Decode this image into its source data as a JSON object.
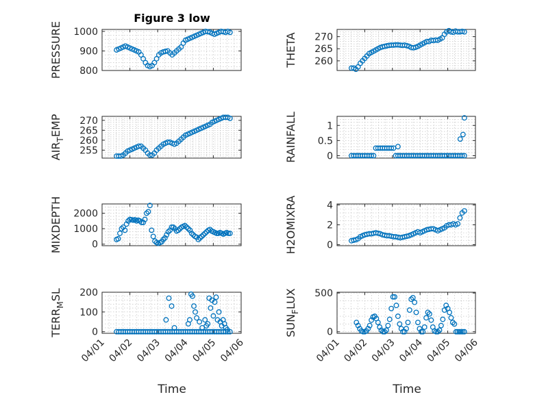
{
  "figure_title": "Figure 3 low",
  "xlabel": "Time",
  "x_ticks": [
    "04/01",
    "04/02",
    "04/03",
    "04/04",
    "04/05",
    "04/06"
  ],
  "marker_color": "#0072BD",
  "chart_data": [
    {
      "type": "scatter",
      "ylabel": "PRESSURE",
      "ylabel_sub": "",
      "xlim": [
        0,
        5
      ],
      "ylim": [
        800,
        1010
      ],
      "yticks": [
        800,
        900,
        1000
      ],
      "grid": true,
      "x": [
        0.52,
        0.6,
        0.68,
        0.76,
        0.84,
        0.92,
        1.0,
        1.08,
        1.16,
        1.24,
        1.32,
        1.4,
        1.48,
        1.56,
        1.64,
        1.72,
        1.8,
        1.88,
        1.96,
        2.04,
        2.12,
        2.2,
        2.28,
        2.36,
        2.44,
        2.52,
        2.6,
        2.68,
        2.76,
        2.84,
        2.92,
        3.0,
        3.08,
        3.16,
        3.24,
        3.32,
        3.4,
        3.48,
        3.56,
        3.64,
        3.72,
        3.8,
        3.88,
        3.96,
        4.04,
        4.12,
        4.2,
        4.28,
        4.36,
        4.44,
        4.52,
        4.6
      ],
      "y": [
        905,
        910,
        915,
        920,
        925,
        920,
        915,
        910,
        905,
        900,
        895,
        880,
        860,
        840,
        825,
        820,
        825,
        840,
        860,
        880,
        890,
        895,
        898,
        900,
        890,
        880,
        890,
        900,
        910,
        920,
        940,
        955,
        960,
        965,
        970,
        975,
        980,
        985,
        990,
        995,
        1000,
        998,
        996,
        990,
        985,
        990,
        995,
        1000,
        998,
        995,
        1000,
        995
      ]
    },
    {
      "type": "scatter",
      "ylabel": "THETA",
      "ylabel_sub": "",
      "xlim": [
        0,
        5
      ],
      "ylim": [
        256,
        273
      ],
      "yticks": [
        260,
        265,
        270
      ],
      "grid": true,
      "x": [
        0.52,
        0.6,
        0.68,
        0.76,
        0.84,
        0.92,
        1.0,
        1.08,
        1.16,
        1.24,
        1.32,
        1.4,
        1.48,
        1.56,
        1.64,
        1.72,
        1.8,
        1.88,
        1.96,
        2.04,
        2.12,
        2.2,
        2.28,
        2.36,
        2.44,
        2.52,
        2.6,
        2.68,
        2.76,
        2.84,
        2.92,
        3.0,
        3.08,
        3.16,
        3.24,
        3.32,
        3.4,
        3.48,
        3.56,
        3.64,
        3.72,
        3.8,
        3.88,
        3.96,
        4.04,
        4.12,
        4.2,
        4.28,
        4.36,
        4.44,
        4.52,
        4.6
      ],
      "y": [
        257,
        257,
        256.5,
        257.5,
        259,
        260,
        261,
        262,
        263,
        263.5,
        264,
        264.5,
        265,
        265.5,
        265.8,
        266,
        266.2,
        266.4,
        266.5,
        266.5,
        266.6,
        266.6,
        266.5,
        266.4,
        266.5,
        266.3,
        266,
        265.5,
        265.4,
        265.6,
        266,
        266.5,
        267,
        267.5,
        268,
        268,
        268.5,
        268.4,
        268.6,
        268.5,
        269,
        269.5,
        271,
        272,
        272.5,
        272,
        271.8,
        272.3,
        272,
        272,
        272.2,
        272
      ]
    },
    {
      "type": "scatter",
      "ylabel": "AIR",
      "ylabel_sub": "T",
      "ylabel_after": "EMP",
      "xlim": [
        0,
        5
      ],
      "ylim": [
        251,
        272
      ],
      "yticks": [
        255,
        260,
        265,
        270
      ],
      "grid": true,
      "x": [
        0.52,
        0.6,
        0.68,
        0.76,
        0.84,
        0.92,
        1.0,
        1.08,
        1.16,
        1.24,
        1.32,
        1.4,
        1.48,
        1.56,
        1.64,
        1.72,
        1.8,
        1.88,
        1.96,
        2.04,
        2.12,
        2.2,
        2.28,
        2.36,
        2.44,
        2.52,
        2.6,
        2.68,
        2.76,
        2.84,
        2.92,
        3.0,
        3.08,
        3.16,
        3.24,
        3.32,
        3.4,
        3.48,
        3.56,
        3.64,
        3.72,
        3.8,
        3.88,
        3.96,
        4.04,
        4.12,
        4.2,
        4.28,
        4.36,
        4.44,
        4.52,
        4.6
      ],
      "y": [
        252,
        252,
        252,
        252.5,
        253.5,
        254.5,
        255,
        255.5,
        256,
        256.5,
        257,
        257,
        256,
        255,
        253.5,
        252.5,
        252.5,
        253.5,
        255,
        256,
        257,
        258,
        258.5,
        259,
        259,
        258.5,
        258,
        258.5,
        259.5,
        260.5,
        261.5,
        262.5,
        263,
        263.5,
        264,
        264.5,
        265,
        265.5,
        266,
        266.5,
        267,
        267.5,
        268,
        269,
        269.5,
        270,
        270.5,
        271,
        271.5,
        271.5,
        271.5,
        271
      ]
    },
    {
      "type": "scatter",
      "ylabel": "RAINFALL",
      "ylabel_sub": "",
      "xlim": [
        0,
        5
      ],
      "ylim": [
        -0.08,
        1.3
      ],
      "yticks": [
        0,
        0.5,
        1
      ],
      "grid": true,
      "x": [
        0.52,
        0.6,
        0.68,
        0.76,
        0.84,
        0.92,
        1.0,
        1.08,
        1.16,
        1.24,
        1.32,
        1.4,
        1.48,
        1.56,
        1.64,
        1.72,
        1.8,
        1.88,
        1.96,
        2.04,
        2.12,
        2.2,
        2.28,
        2.36,
        2.44,
        2.52,
        2.6,
        2.68,
        2.76,
        2.84,
        2.92,
        3.0,
        3.08,
        3.16,
        3.24,
        3.32,
        3.4,
        3.48,
        3.56,
        3.64,
        3.72,
        3.8,
        3.88,
        3.96,
        4.04,
        4.12,
        4.2,
        4.28,
        4.36,
        4.44,
        4.52,
        4.6,
        2.2,
        4.45,
        4.55,
        4.6
      ],
      "y": [
        0,
        0,
        0,
        0,
        0,
        0,
        0,
        0,
        0,
        0,
        0,
        0.25,
        0.25,
        0.25,
        0.25,
        0.25,
        0.25,
        0.25,
        0.25,
        0.25,
        0,
        0,
        0,
        0,
        0,
        0,
        0,
        0,
        0,
        0,
        0,
        0,
        0,
        0,
        0,
        0,
        0,
        0,
        0,
        0,
        0,
        0,
        0,
        0,
        0,
        0,
        0,
        0,
        0,
        0,
        0,
        0,
        0.3,
        0.55,
        0.7,
        1.25
      ]
    },
    {
      "type": "scatter",
      "ylabel": "MIXDEPTH",
      "ylabel_sub": "",
      "xlim": [
        0,
        5
      ],
      "ylim": [
        -100,
        2600
      ],
      "yticks": [
        0,
        1000,
        2000
      ],
      "grid": true,
      "x": [
        0.52,
        0.58,
        0.64,
        0.7,
        0.76,
        0.82,
        0.88,
        0.94,
        1.0,
        1.06,
        1.12,
        1.18,
        1.24,
        1.3,
        1.36,
        1.42,
        1.48,
        1.54,
        1.6,
        1.66,
        1.72,
        1.78,
        1.84,
        1.9,
        1.96,
        2.02,
        2.08,
        2.14,
        2.2,
        2.26,
        2.32,
        2.38,
        2.44,
        2.5,
        2.56,
        2.62,
        2.68,
        2.74,
        2.8,
        2.86,
        2.92,
        2.98,
        3.04,
        3.1,
        3.16,
        3.22,
        3.28,
        3.34,
        3.4,
        3.46,
        3.52,
        3.58,
        3.64,
        3.7,
        3.76,
        3.82,
        3.88,
        3.94,
        4.0,
        4.06,
        4.12,
        4.18,
        4.24,
        4.3,
        4.36,
        4.42,
        4.48,
        4.54,
        4.6
      ],
      "y": [
        300,
        350,
        700,
        1000,
        1100,
        900,
        1300,
        1500,
        1600,
        1580,
        1550,
        1580,
        1500,
        1550,
        1500,
        1400,
        1400,
        1600,
        2000,
        2100,
        2500,
        900,
        500,
        200,
        100,
        50,
        100,
        150,
        300,
        400,
        600,
        800,
        900,
        1100,
        1100,
        1000,
        850,
        900,
        1000,
        1100,
        1150,
        1200,
        1100,
        1000,
        900,
        700,
        600,
        500,
        450,
        300,
        400,
        500,
        600,
        700,
        800,
        900,
        950,
        850,
        800,
        750,
        700,
        700,
        750,
        700,
        650,
        700,
        750,
        700,
        700
      ]
    },
    {
      "type": "scatter",
      "ylabel": "H2OMIXRA",
      "ylabel_sub": "",
      "xlim": [
        0,
        5
      ],
      "ylim": [
        -0.1,
        4.1
      ],
      "yticks": [
        0,
        2,
        4
      ],
      "grid": true,
      "x": [
        0.52,
        0.6,
        0.68,
        0.76,
        0.84,
        0.92,
        1.0,
        1.08,
        1.16,
        1.24,
        1.32,
        1.4,
        1.48,
        1.56,
        1.64,
        1.72,
        1.8,
        1.88,
        1.96,
        2.04,
        2.12,
        2.2,
        2.28,
        2.36,
        2.44,
        2.52,
        2.6,
        2.68,
        2.76,
        2.84,
        2.92,
        3.0,
        3.08,
        3.16,
        3.24,
        3.32,
        3.4,
        3.48,
        3.56,
        3.64,
        3.72,
        3.8,
        3.88,
        3.96,
        4.04,
        4.12,
        4.2,
        4.28,
        4.36,
        4.44,
        4.52,
        4.6
      ],
      "y": [
        0.4,
        0.45,
        0.5,
        0.6,
        0.8,
        0.9,
        1.0,
        1.05,
        1.1,
        1.1,
        1.15,
        1.2,
        1.15,
        1.1,
        1.0,
        0.95,
        0.9,
        0.9,
        0.85,
        0.8,
        0.8,
        0.75,
        0.7,
        0.75,
        0.8,
        0.85,
        0.9,
        1.0,
        1.1,
        1.2,
        1.3,
        1.2,
        1.3,
        1.4,
        1.5,
        1.55,
        1.6,
        1.6,
        1.5,
        1.4,
        1.5,
        1.6,
        1.7,
        1.9,
        2.0,
        2.0,
        2.1,
        2.0,
        2.1,
        2.7,
        3.2,
        3.4
      ]
    },
    {
      "type": "scatter",
      "ylabel": "TERR",
      "ylabel_sub": "M",
      "ylabel_after": "SL",
      "xlim": [
        0,
        5
      ],
      "ylim": [
        -8,
        200
      ],
      "yticks": [
        0,
        100,
        200
      ],
      "grid": true,
      "x": [
        0.52,
        0.6,
        0.68,
        0.76,
        0.84,
        0.92,
        1.0,
        1.08,
        1.16,
        1.24,
        1.32,
        1.4,
        1.48,
        1.56,
        1.64,
        1.72,
        1.8,
        1.88,
        1.96,
        2.04,
        2.12,
        2.2,
        2.28,
        2.36,
        2.44,
        2.52,
        2.6,
        2.68,
        2.76,
        2.84,
        2.92,
        3.0,
        3.08,
        3.16,
        3.24,
        3.32,
        3.4,
        3.48,
        3.56,
        3.64,
        3.72,
        3.8,
        3.88,
        3.96,
        4.04,
        4.12,
        4.2,
        4.28,
        4.36,
        4.44,
        4.52,
        4.6,
        2.3,
        2.4,
        2.5,
        2.6,
        3.1,
        3.15,
        3.2,
        3.25,
        3.3,
        3.35,
        3.4,
        3.5,
        3.6,
        3.7,
        3.75,
        3.8,
        3.85,
        3.9,
        3.95,
        4.0,
        4.05,
        4.1,
        4.15,
        4.2,
        4.25,
        4.3,
        4.35,
        4.4,
        4.45,
        4.5
      ],
      "y": [
        0,
        0,
        0,
        0,
        0,
        0,
        0,
        0,
        0,
        0,
        0,
        0,
        0,
        0,
        0,
        0,
        0,
        0,
        0,
        0,
        0,
        0,
        0,
        0,
        0,
        0,
        0,
        0,
        0,
        0,
        0,
        0,
        0,
        0,
        0,
        0,
        0,
        0,
        0,
        0,
        0,
        0,
        0,
        0,
        0,
        0,
        0,
        0,
        0,
        0,
        0,
        0,
        60,
        170,
        130,
        20,
        40,
        60,
        190,
        180,
        130,
        100,
        70,
        50,
        20,
        60,
        30,
        40,
        170,
        120,
        160,
        80,
        150,
        175,
        60,
        100,
        50,
        30,
        60,
        40,
        20,
        10
      ]
    },
    {
      "type": "scatter",
      "ylabel": "SUN",
      "ylabel_sub": "F",
      "ylabel_after": "LUX",
      "xlim": [
        0,
        5
      ],
      "ylim": [
        -20,
        510
      ],
      "yticks": [
        0,
        500
      ],
      "grid": true,
      "x": [
        0.7,
        0.76,
        0.82,
        0.88,
        0.94,
        1.0,
        1.06,
        1.12,
        1.18,
        1.24,
        1.3,
        1.36,
        1.42,
        1.48,
        1.54,
        1.6,
        1.66,
        1.72,
        1.78,
        1.84,
        1.9,
        1.96,
        2.02,
        2.08,
        2.14,
        2.2,
        2.26,
        2.32,
        2.38,
        2.44,
        2.5,
        2.56,
        2.62,
        2.68,
        2.74,
        2.8,
        2.86,
        2.92,
        2.98,
        3.04,
        3.1,
        3.16,
        3.22,
        3.28,
        3.34,
        3.4,
        3.46,
        3.52,
        3.58,
        3.64,
        3.7,
        3.76,
        3.82,
        3.88,
        3.94,
        4.0,
        4.06,
        4.12,
        4.18,
        4.24,
        4.3,
        4.36,
        4.42,
        4.48,
        4.54,
        4.6
      ],
      "y": [
        120,
        80,
        40,
        10,
        0,
        0,
        10,
        40,
        80,
        150,
        190,
        200,
        170,
        120,
        60,
        20,
        0,
        0,
        20,
        80,
        160,
        300,
        450,
        450,
        340,
        200,
        100,
        40,
        0,
        0,
        40,
        120,
        280,
        420,
        440,
        380,
        250,
        120,
        40,
        0,
        0,
        60,
        180,
        250,
        230,
        150,
        60,
        10,
        0,
        0,
        20,
        80,
        160,
        280,
        340,
        300,
        250,
        180,
        120,
        100,
        0,
        0,
        0,
        0,
        0,
        0
      ]
    }
  ]
}
